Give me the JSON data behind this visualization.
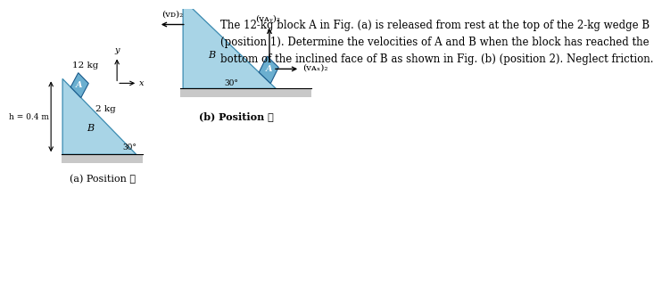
{
  "bg_color": "#ffffff",
  "wedge_color": "#a8d4e6",
  "block_color": "#6bafd0",
  "ground_color": "#c8c8c8",
  "text_color": "#000000",
  "title_text": "The 12-kg block A in Fig. (a) is released from rest at the top of the 2-kg wedge B\n(position 1). Determine the velocities of A and B when the block has reached the\nbottom of the inclined face of B as shown in Fig. (b) (position 2). Neglect friction.",
  "caption_a": "(a) Position ①",
  "caption_b": "(b) Position ②",
  "label_12kg": "12 kg",
  "label_2kg": "2 kg",
  "label_A": "A",
  "label_B_a": "B",
  "label_B_b": "B",
  "label_h": "h = 0.4 m",
  "label_30a": "30°",
  "label_30b": "30°",
  "label_vB2": "(vᴅ)₂",
  "label_vAy2": "(vᴀᵧ)₂",
  "label_vAx2": "(vᴀₓ)₂",
  "font_size_title": 8.5,
  "font_size_labels": 7.5,
  "font_size_caption": 8.0
}
